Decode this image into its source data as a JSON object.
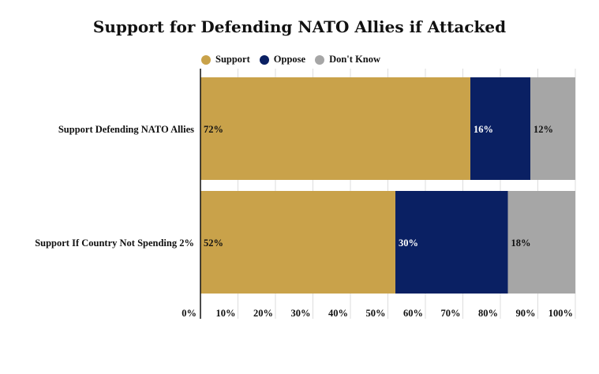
{
  "chart_data": {
    "type": "bar",
    "orientation": "horizontal",
    "stacked": true,
    "title": "Support for Defending NATO Allies if Attacked",
    "categories": [
      "Support Defending NATO Allies",
      "Support If Country Not Spending 2%"
    ],
    "series": [
      {
        "name": "Support",
        "values": [
          72,
          52
        ],
        "labels": [
          "72%",
          "52%"
        ],
        "color": "#C9A24A"
      },
      {
        "name": "Oppose",
        "values": [
          16,
          30
        ],
        "labels": [
          "16%",
          "30%"
        ],
        "color": "#0A2063"
      },
      {
        "name": "Don't Know",
        "values": [
          12,
          18
        ],
        "labels": [
          "12%",
          "18%"
        ],
        "color": "#A6A6A6"
      }
    ],
    "xlim": [
      0,
      100
    ],
    "x_ticks": [
      "0%",
      "10%",
      "20%",
      "30%",
      "40%",
      "50%",
      "60%",
      "70%",
      "80%",
      "90%",
      "100%"
    ],
    "grid": true,
    "legend_position": "top"
  }
}
